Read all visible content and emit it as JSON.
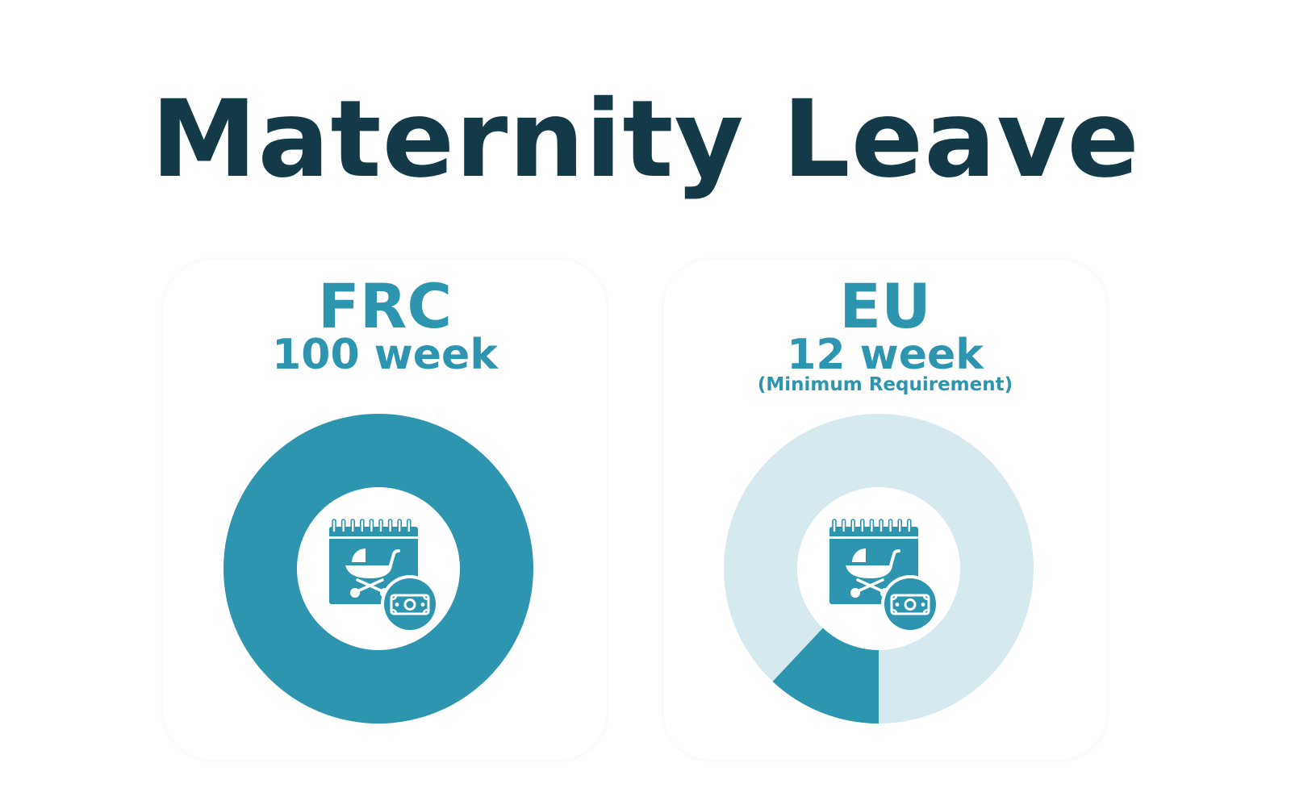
{
  "title": "Maternity Leave",
  "colors": {
    "title": "#133a47",
    "accent": "#2e95b0",
    "track": "#d6e9ef",
    "hole": "#ffffff"
  },
  "icon_name": "calendar-pram-money-icon",
  "chart_data": [
    {
      "type": "pie",
      "title": "FRC",
      "subtitle": "100 week",
      "note": "",
      "weeks": 100,
      "max_weeks": 100,
      "fraction": 1.0
    },
    {
      "type": "pie",
      "title": "EU",
      "subtitle": "12 week",
      "note": "(Minimum Requirement)",
      "weeks": 12,
      "max_weeks": 100,
      "fraction": 0.12
    }
  ]
}
